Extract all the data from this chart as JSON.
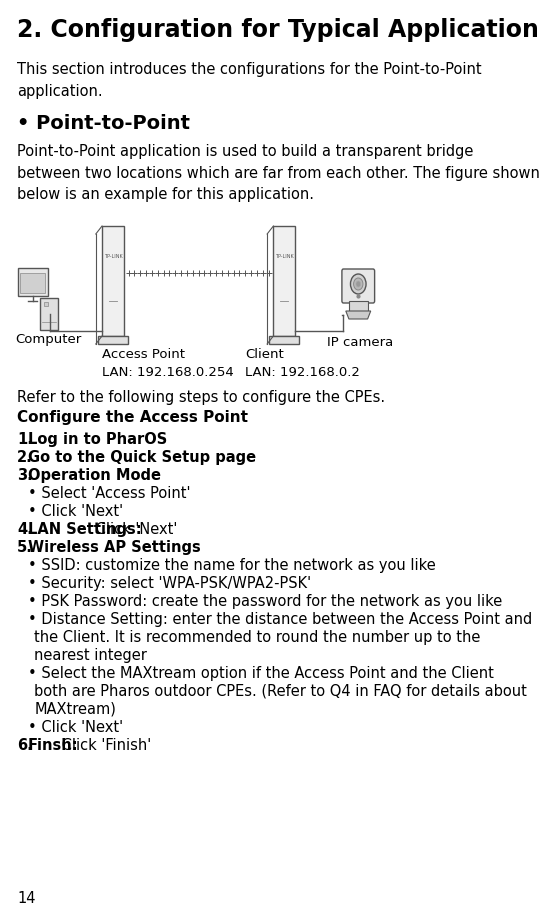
{
  "title": "2. Configuration for Typical Application",
  "intro": "This section introduces the configurations for the Point-to-Point\napplication.",
  "bullet_heading": "• Point-to-Point",
  "bullet_intro": "Point-to-Point application is used to build a transparent bridge\nbetween two locations which are far from each other. The figure shown\nbelow is an example for this application.",
  "refer_text": "Refer to the following steps to configure the CPEs.",
  "section_heading": "Configure the Access Point",
  "steps": [
    {
      "num": "1.",
      "bold": "Log in to PharOS",
      "rest": ""
    },
    {
      "num": "2.",
      "bold": "Go to the Quick Setup page",
      "rest": ""
    },
    {
      "num": "3.",
      "bold": "Operation Mode",
      "rest": ""
    },
    {
      "num": null,
      "bold": null,
      "rest": "• Select 'Access Point'",
      "indent": true
    },
    {
      "num": null,
      "bold": null,
      "rest": "• Click 'Next'",
      "indent": true
    },
    {
      "num": "4.",
      "bold": "LAN Settings:",
      "rest": " Click 'Next'"
    },
    {
      "num": "5.",
      "bold": "Wireless AP Settings",
      "rest": ""
    },
    {
      "num": null,
      "bold": null,
      "rest": "• SSID: customize the name for the network as you like",
      "indent": true
    },
    {
      "num": null,
      "bold": null,
      "rest": "• Security: select 'WPA-PSK/WPA2-PSK'",
      "indent": true
    },
    {
      "num": null,
      "bold": null,
      "rest": "• PSK Password: create the password for the network as you like",
      "indent": true
    },
    {
      "num": null,
      "bold": null,
      "rest": "• Distance Setting: enter the distance between the Access Point and\n   the Client. It is recommended to round the number up to the\n   nearest integer",
      "indent": true
    },
    {
      "num": null,
      "bold": null,
      "rest": "• Select the MAXtream option if the Access Point and the Client\n   both are Pharos outdoor CPEs. (Refer to Q4 in FAQ for details about\n   MAXtream)",
      "indent": true
    },
    {
      "num": null,
      "bold": null,
      "rest": "• Click 'Next'",
      "indent": true
    },
    {
      "num": "6.",
      "bold": "Finsh:",
      "rest": " Click 'Finish'"
    }
  ],
  "ap_label": "Access Point\nLAN: 192.168.0.254",
  "client_label": "Client\nLAN: 192.168.0.2",
  "computer_label": "Computer",
  "ip_camera_label": "IP camera",
  "page_number": "14",
  "bg_color": "#ffffff",
  "text_color": "#000000",
  "title_fontsize": 17,
  "body_fontsize": 10.5,
  "heading_fontsize": 11,
  "small_fontsize": 9.5
}
